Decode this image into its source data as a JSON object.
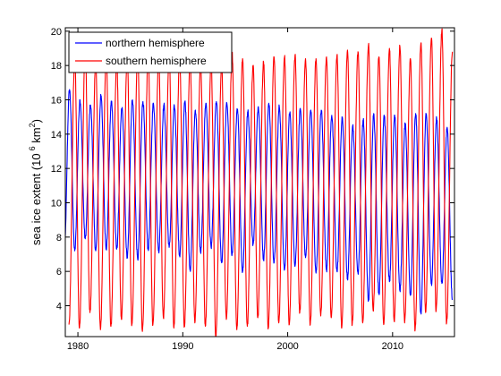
{
  "chart_data": {
    "type": "line",
    "title": "",
    "xlabel": "",
    "ylabel": "sea ice extent (10^6 km^2)",
    "ylabel_parts": {
      "prefix": "sea ice extent (10",
      "exp1": "6",
      "mid": " km",
      "exp2": "2",
      "suffix": ")"
    },
    "xlim": [
      1978.8,
      2015.9
    ],
    "ylim": [
      2.2,
      20.2
    ],
    "xticks": [
      1980,
      1990,
      2000,
      2010
    ],
    "xtick_labels": [
      "1980",
      "1990",
      "2000",
      "2010"
    ],
    "yticks": [
      4,
      6,
      8,
      10,
      12,
      14,
      16,
      18,
      20
    ],
    "ytick_labels": [
      "4",
      "6",
      "8",
      "10",
      "12",
      "14",
      "16",
      "18",
      "20"
    ],
    "grid": false,
    "legend_position": "top-left",
    "series": [
      {
        "name": "northern hemisphere",
        "color": "#0000ff",
        "cycle": "annual",
        "x_peaks": [
          1979.2,
          1980.2,
          1981.2,
          1982.2,
          1983.2,
          1984.2,
          1985.2,
          1986.2,
          1987.2,
          1988.2,
          1989.2,
          1990.2,
          1991.2,
          1992.2,
          1993.2,
          1994.2,
          1995.2,
          1996.2,
          1997.2,
          1998.2,
          1999.2,
          2000.2,
          2001.2,
          2002.2,
          2003.2,
          2004.2,
          2005.2,
          2006.2,
          2007.2,
          2008.2,
          2009.2,
          2010.2,
          2011.2,
          2012.2,
          2013.2,
          2014.2,
          2015.2
        ],
        "annual_max": [
          16.6,
          16.0,
          15.7,
          16.2,
          15.9,
          15.5,
          16.0,
          15.9,
          15.8,
          15.7,
          15.6,
          15.9,
          15.4,
          15.8,
          15.9,
          15.8,
          15.4,
          15.3,
          15.6,
          15.8,
          15.6,
          15.2,
          15.5,
          15.4,
          15.4,
          15.1,
          14.9,
          14.5,
          14.8,
          15.2,
          15.1,
          15.1,
          14.6,
          15.2,
          15.1,
          14.9,
          14.4
        ],
        "x_troughs": [
          1978.7,
          1979.7,
          1980.7,
          1981.7,
          1982.7,
          1983.7,
          1984.7,
          1985.7,
          1986.7,
          1987.7,
          1988.7,
          1989.7,
          1990.7,
          1991.7,
          1992.7,
          1993.7,
          1994.7,
          1995.7,
          1996.7,
          1997.7,
          1998.7,
          1999.7,
          2000.7,
          2001.7,
          2002.7,
          2003.7,
          2004.7,
          2005.7,
          2006.7,
          2007.7,
          2008.7,
          2009.7,
          2010.7,
          2011.7,
          2012.7,
          2013.7,
          2014.7,
          2015.7
        ],
        "annual_min": [
          7.0,
          7.2,
          7.9,
          7.2,
          7.3,
          7.3,
          6.8,
          6.7,
          7.3,
          7.2,
          7.4,
          6.9,
          6.1,
          7.1,
          7.4,
          6.5,
          7.0,
          6.0,
          7.6,
          6.7,
          6.5,
          6.1,
          6.3,
          6.8,
          5.9,
          6.1,
          6.0,
          5.6,
          5.9,
          4.3,
          4.7,
          5.4,
          4.9,
          4.6,
          3.6,
          5.3,
          5.3,
          4.4
        ]
      },
      {
        "name": "southern hemisphere",
        "color": "#ff0000",
        "cycle": "annual",
        "x_peaks": [
          1979.7,
          1980.7,
          1981.7,
          1982.7,
          1983.7,
          1984.7,
          1985.7,
          1986.7,
          1987.7,
          1988.7,
          1989.7,
          1990.7,
          1991.7,
          1992.7,
          1993.7,
          1994.7,
          1995.7,
          1996.7,
          1997.7,
          1998.7,
          1999.7,
          2000.7,
          2001.7,
          2002.7,
          2003.7,
          2004.7,
          2005.7,
          2006.7,
          2007.7,
          2008.7,
          2009.7,
          2010.7,
          2011.7,
          2012.7,
          2013.7,
          2014.7,
          2015.7
        ],
        "annual_max": [
          18.4,
          18.9,
          18.2,
          18.5,
          18.2,
          18.5,
          18.7,
          18.6,
          18.3,
          18.6,
          18.5,
          18.3,
          18.2,
          18.1,
          18.0,
          18.7,
          18.4,
          18.0,
          18.2,
          18.5,
          18.5,
          18.6,
          18.4,
          18.4,
          18.5,
          18.6,
          18.9,
          18.8,
          19.2,
          18.5,
          19.0,
          19.1,
          18.4,
          19.3,
          19.6,
          20.1,
          18.8
        ],
        "x_troughs": [
          1979.15,
          1980.15,
          1981.15,
          1982.15,
          1983.15,
          1984.15,
          1985.15,
          1986.15,
          1987.15,
          1988.15,
          1989.15,
          1990.15,
          1991.15,
          1992.15,
          1993.15,
          1994.15,
          1995.15,
          1996.15,
          1997.15,
          1998.15,
          1999.15,
          2000.15,
          2001.15,
          2002.15,
          2003.15,
          2004.15,
          2005.15,
          2006.15,
          2007.15,
          2008.15,
          2009.15,
          2010.15,
          2011.15,
          2012.15,
          2013.15,
          2014.15,
          2015.15
        ],
        "annual_min": [
          2.9,
          2.7,
          3.6,
          2.6,
          2.8,
          3.2,
          2.9,
          2.5,
          2.9,
          3.3,
          2.7,
          2.8,
          3.0,
          2.8,
          2.2,
          3.2,
          2.6,
          2.8,
          3.3,
          2.7,
          3.0,
          2.9,
          3.6,
          2.9,
          3.4,
          3.3,
          2.7,
          2.9,
          3.0,
          3.7,
          2.9,
          3.1,
          3.0,
          2.6,
          3.6,
          3.7,
          3.0
        ]
      }
    ]
  }
}
